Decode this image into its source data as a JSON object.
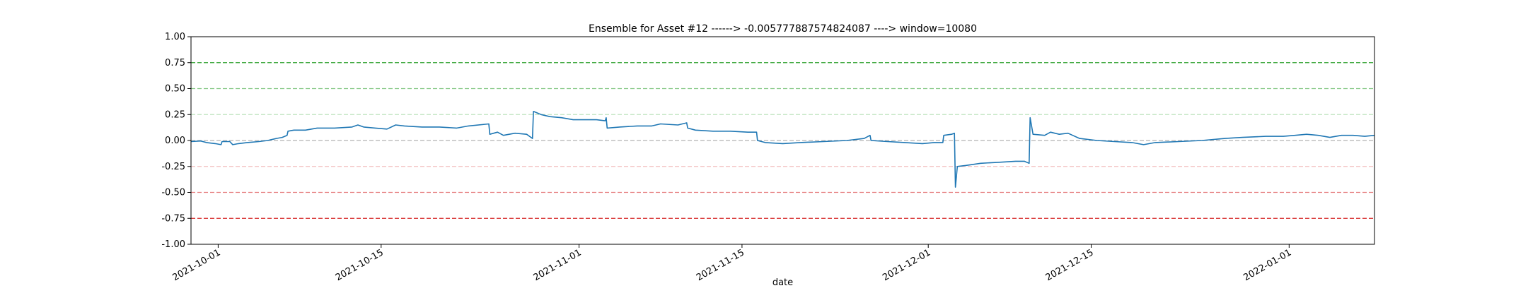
{
  "chart_data": {
    "type": "line",
    "title": "Ensemble for Asset #12 ------> -0.005777887574824087 ----> window=10080",
    "xlabel": "date",
    "ylabel": "",
    "ylim": [
      -1.0,
      1.0
    ],
    "xlim": [
      "2021-09-28T16:00",
      "2022-01-08T08:00"
    ],
    "y_ticks": [
      "-1.00",
      "-0.75",
      "-0.50",
      "-0.25",
      "0.00",
      "0.25",
      "0.50",
      "0.75",
      "1.00"
    ],
    "x_ticks": [
      {
        "date": "2021-10-01",
        "label": "2021-10-01"
      },
      {
        "date": "2021-10-15",
        "label": "2021-10-15"
      },
      {
        "date": "2021-11-01",
        "label": "2021-11-01"
      },
      {
        "date": "2021-11-15",
        "label": "2021-11-15"
      },
      {
        "date": "2021-12-01",
        "label": "2021-12-01"
      },
      {
        "date": "2021-12-15",
        "label": "2021-12-15"
      },
      {
        "date": "2022-01-01",
        "label": "2022-01-01"
      }
    ],
    "reference_lines": [
      {
        "y": 0.75,
        "color": "#2ca02c",
        "opacity": 1.0
      },
      {
        "y": 0.5,
        "color": "#2ca02c",
        "opacity": 0.6
      },
      {
        "y": 0.25,
        "color": "#2ca02c",
        "opacity": 0.3
      },
      {
        "y": 0.0,
        "color": "#7f7f7f",
        "opacity": 0.6
      },
      {
        "y": -0.25,
        "color": "#d62728",
        "opacity": 0.3
      },
      {
        "y": -0.5,
        "color": "#d62728",
        "opacity": 0.6
      },
      {
        "y": -0.75,
        "color": "#d62728",
        "opacity": 1.0
      }
    ],
    "series": [
      {
        "color": "#1f77b4",
        "points": [
          [
            "2021-09-28T16:00",
            -0.01
          ],
          [
            "2021-09-29T12:00",
            -0.005
          ],
          [
            "2021-09-30T00:00",
            -0.02
          ],
          [
            "2021-09-30T18:00",
            -0.03
          ],
          [
            "2021-10-01T06:00",
            -0.04
          ],
          [
            "2021-10-01T08:00",
            -0.01
          ],
          [
            "2021-10-02T00:00",
            -0.01
          ],
          [
            "2021-10-02T06:00",
            -0.04
          ],
          [
            "2021-10-02T18:00",
            -0.03
          ],
          [
            "2021-10-03T12:00",
            -0.02
          ],
          [
            "2021-10-04T12:00",
            -0.01
          ],
          [
            "2021-10-05T06:00",
            0.0
          ],
          [
            "2021-10-06T00:00",
            0.02
          ],
          [
            "2021-10-06T12:00",
            0.03
          ],
          [
            "2021-10-06T22:00",
            0.05
          ],
          [
            "2021-10-07T00:00",
            0.09
          ],
          [
            "2021-10-07T12:00",
            0.1
          ],
          [
            "2021-10-08T12:00",
            0.1
          ],
          [
            "2021-10-09T12:00",
            0.12
          ],
          [
            "2021-10-11T00:00",
            0.12
          ],
          [
            "2021-10-12T12:00",
            0.13
          ],
          [
            "2021-10-13T00:00",
            0.15
          ],
          [
            "2021-10-13T12:00",
            0.13
          ],
          [
            "2021-10-14T12:00",
            0.12
          ],
          [
            "2021-10-15T12:00",
            0.11
          ],
          [
            "2021-10-16T06:00",
            0.15
          ],
          [
            "2021-10-17T00:00",
            0.14
          ],
          [
            "2021-10-18T12:00",
            0.13
          ],
          [
            "2021-10-20T00:00",
            0.13
          ],
          [
            "2021-10-21T12:00",
            0.12
          ],
          [
            "2021-10-22T12:00",
            0.14
          ],
          [
            "2021-10-24T06:00",
            0.16
          ],
          [
            "2021-10-24T08:00",
            0.06
          ],
          [
            "2021-10-25T00:00",
            0.08
          ],
          [
            "2021-10-25T12:00",
            0.05
          ],
          [
            "2021-10-26T12:00",
            0.07
          ],
          [
            "2021-10-27T12:00",
            0.06
          ],
          [
            "2021-10-28T00:00",
            0.02
          ],
          [
            "2021-10-28T02:00",
            0.28
          ],
          [
            "2021-10-28T18:00",
            0.25
          ],
          [
            "2021-10-29T12:00",
            0.23
          ],
          [
            "2021-10-30T12:00",
            0.22
          ],
          [
            "2021-10-31T12:00",
            0.2
          ],
          [
            "2021-11-01T12:00",
            0.2
          ],
          [
            "2021-11-02T12:00",
            0.2
          ],
          [
            "2021-11-03T06:00",
            0.19
          ],
          [
            "2021-11-03T08:00",
            0.22
          ],
          [
            "2021-11-03T10:00",
            0.12
          ],
          [
            "2021-11-04T12:00",
            0.13
          ],
          [
            "2021-11-06T00:00",
            0.14
          ],
          [
            "2021-11-07T06:00",
            0.14
          ],
          [
            "2021-11-08T00:00",
            0.16
          ],
          [
            "2021-11-09T12:00",
            0.15
          ],
          [
            "2021-11-10T06:00",
            0.17
          ],
          [
            "2021-11-10T08:00",
            0.12
          ],
          [
            "2021-11-11T00:00",
            0.1
          ],
          [
            "2021-11-12T12:00",
            0.09
          ],
          [
            "2021-11-14T00:00",
            0.09
          ],
          [
            "2021-11-15T12:00",
            0.08
          ],
          [
            "2021-11-16T06:00",
            0.08
          ],
          [
            "2021-11-16T08:00",
            0.0
          ],
          [
            "2021-11-17T00:00",
            -0.02
          ],
          [
            "2021-11-18T12:00",
            -0.03
          ],
          [
            "2021-11-20T00:00",
            -0.02
          ],
          [
            "2021-11-22T00:00",
            -0.01
          ],
          [
            "2021-11-24T00:00",
            0.0
          ],
          [
            "2021-11-25T12:00",
            0.02
          ],
          [
            "2021-11-26T00:00",
            0.05
          ],
          [
            "2021-11-26T02:00",
            0.0
          ],
          [
            "2021-11-27T12:00",
            -0.01
          ],
          [
            "2021-11-29T00:00",
            -0.02
          ],
          [
            "2021-11-30T12:00",
            -0.03
          ],
          [
            "2021-12-01T12:00",
            -0.02
          ],
          [
            "2021-12-02T06:00",
            -0.02
          ],
          [
            "2021-12-02T08:00",
            0.05
          ],
          [
            "2021-12-03T00:00",
            0.06
          ],
          [
            "2021-12-03T06:00",
            0.07
          ],
          [
            "2021-12-03T08:00",
            -0.45
          ],
          [
            "2021-12-03T12:00",
            -0.25
          ],
          [
            "2021-12-04T06:00",
            -0.24
          ],
          [
            "2021-12-05T12:00",
            -0.22
          ],
          [
            "2021-12-07T00:00",
            -0.21
          ],
          [
            "2021-12-08T12:00",
            -0.2
          ],
          [
            "2021-12-09T06:00",
            -0.2
          ],
          [
            "2021-12-09T16:00",
            -0.22
          ],
          [
            "2021-12-09T18:00",
            0.22
          ],
          [
            "2021-12-10T00:00",
            0.06
          ],
          [
            "2021-12-11T00:00",
            0.05
          ],
          [
            "2021-12-11T12:00",
            0.08
          ],
          [
            "2021-12-12T06:00",
            0.06
          ],
          [
            "2021-12-13T00:00",
            0.07
          ],
          [
            "2021-12-14T00:00",
            0.02
          ],
          [
            "2021-12-15T12:00",
            0.0
          ],
          [
            "2021-12-17T00:00",
            -0.01
          ],
          [
            "2021-12-18T12:00",
            -0.02
          ],
          [
            "2021-12-19T12:00",
            -0.04
          ],
          [
            "2021-12-20T12:00",
            -0.02
          ],
          [
            "2021-12-22T12:00",
            -0.01
          ],
          [
            "2021-12-24T12:00",
            0.0
          ],
          [
            "2021-12-26T12:00",
            0.02
          ],
          [
            "2021-12-28T00:00",
            0.03
          ],
          [
            "2021-12-30T00:00",
            0.04
          ],
          [
            "2021-12-31T12:00",
            0.04
          ],
          [
            "2022-01-01T12:00",
            0.05
          ],
          [
            "2022-01-02T12:00",
            0.06
          ],
          [
            "2022-01-03T12:00",
            0.05
          ],
          [
            "2022-01-04T12:00",
            0.03
          ],
          [
            "2022-01-05T12:00",
            0.05
          ],
          [
            "2022-01-06T12:00",
            0.05
          ],
          [
            "2022-01-07T12:00",
            0.04
          ],
          [
            "2022-01-08T08:00",
            0.05
          ]
        ]
      }
    ]
  }
}
